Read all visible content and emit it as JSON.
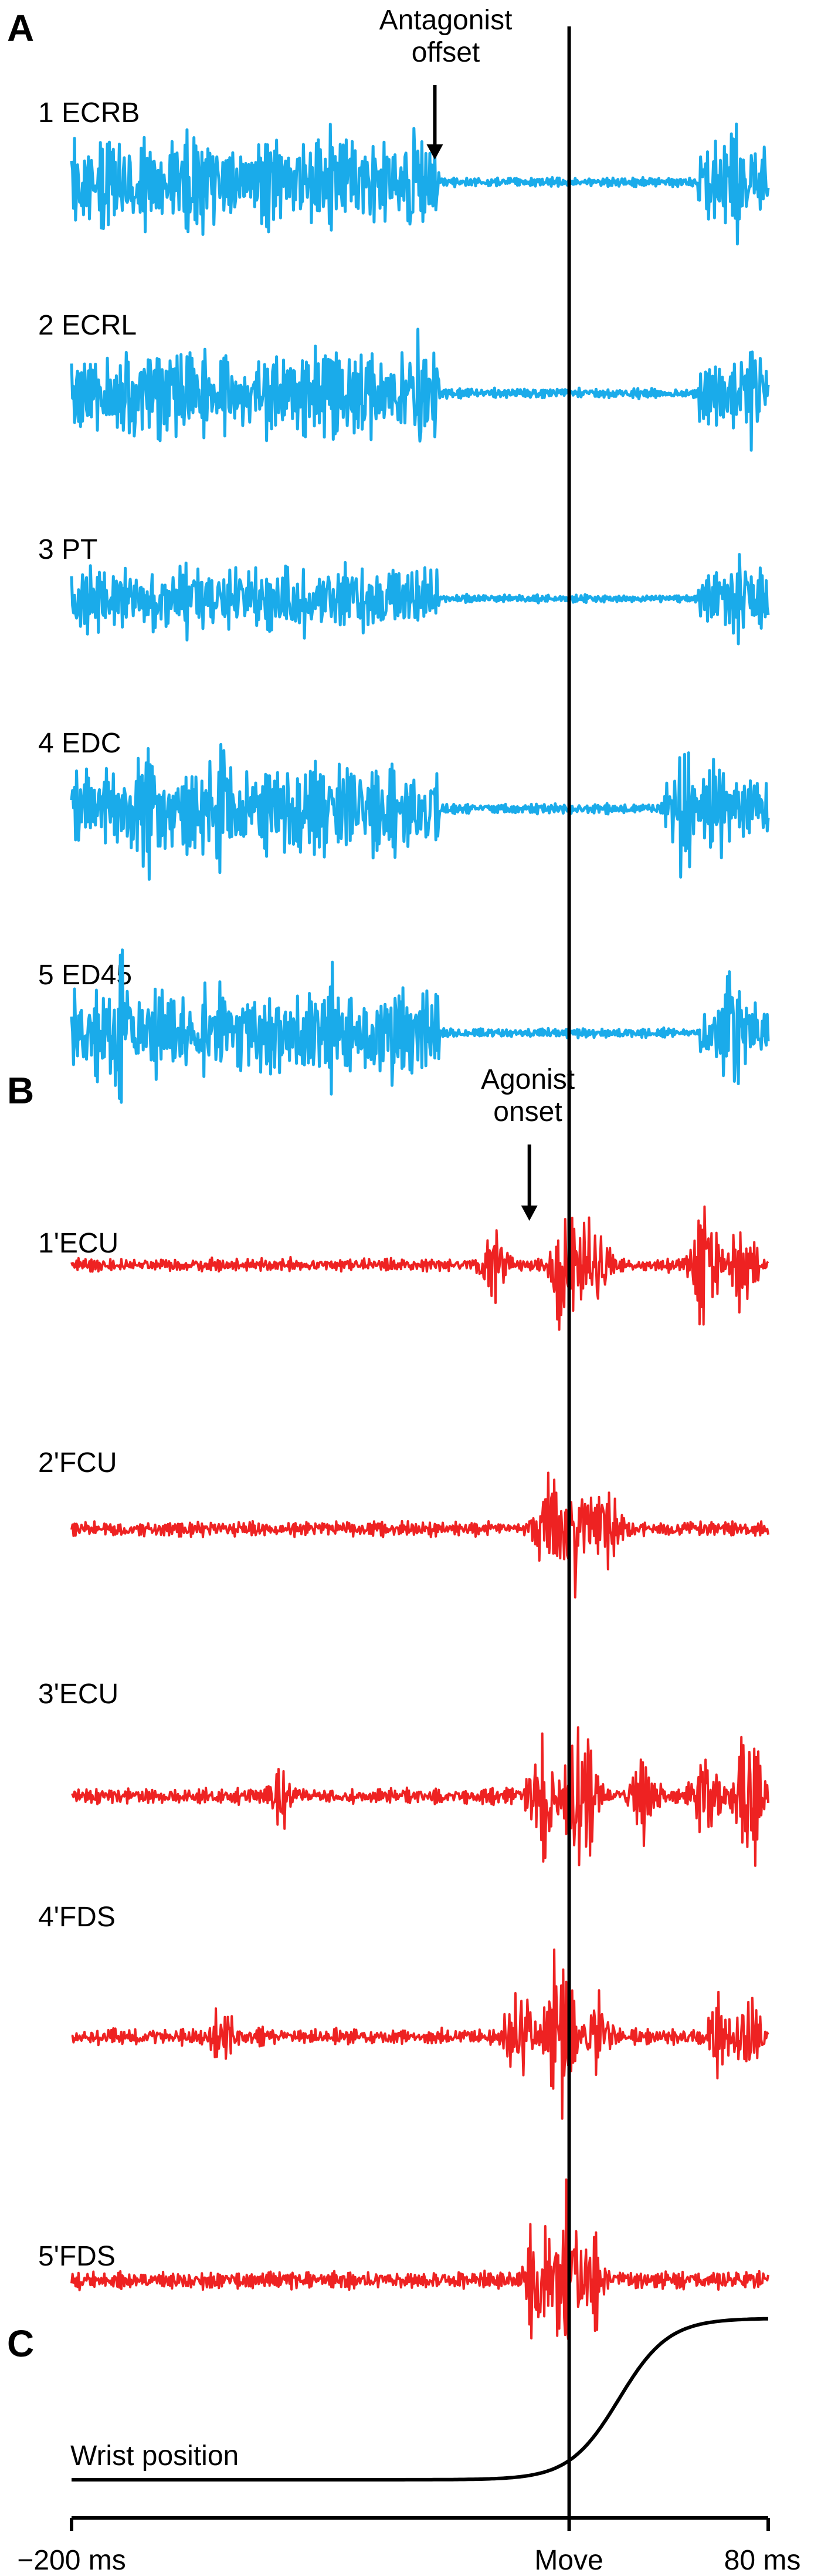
{
  "chart_data": {
    "type": "line",
    "x_range_ms": [
      -200,
      80
    ],
    "panels": [
      {
        "letter": "A",
        "color": "#1aabea"
      },
      {
        "letter": "B",
        "color": "#ee2222"
      },
      {
        "letter": "C",
        "color": "#000000"
      }
    ],
    "traces": [
      {
        "label": "1 ECRB",
        "panel": "A",
        "number": 1,
        "muscle": "ECRB"
      },
      {
        "label": "2 ECRL",
        "panel": "A",
        "number": 2,
        "muscle": "ECRL"
      },
      {
        "label": "3 PT",
        "panel": "A",
        "number": 3,
        "muscle": "PT"
      },
      {
        "label": "4 EDC",
        "panel": "A",
        "number": 4,
        "muscle": "EDC"
      },
      {
        "label": "5 ED45",
        "panel": "A",
        "number": 5,
        "muscle": "ED45"
      },
      {
        "label": "1'ECU",
        "panel": "B",
        "number": 1,
        "muscle": "ECU"
      },
      {
        "label": "2'FCU",
        "panel": "B",
        "number": 2,
        "muscle": "FCU"
      },
      {
        "label": "3'ECU",
        "panel": "B",
        "number": 3,
        "muscle": "ECU"
      },
      {
        "label": "4'FDS",
        "panel": "B",
        "number": 4,
        "muscle": "FDS"
      },
      {
        "label": "5'FDS",
        "panel": "B",
        "number": 5,
        "muscle": "FDS"
      }
    ],
    "wrist_position": {
      "label": "Wrist position",
      "rise_start_ms": -20,
      "rise_end_ms": 60
    },
    "annotations": [
      {
        "line1": "Antagonist",
        "line2": "offset",
        "x_ms": -54
      },
      {
        "line1": "Agonist",
        "line2": "onset",
        "x_ms": -16
      }
    ],
    "move_marker_ms": 0,
    "x_ticks": [
      {
        "value": -200,
        "label": "−200 ms"
      },
      {
        "value": 0,
        "label": "Move"
      },
      {
        "value": 80,
        "label": "80 ms"
      }
    ]
  }
}
